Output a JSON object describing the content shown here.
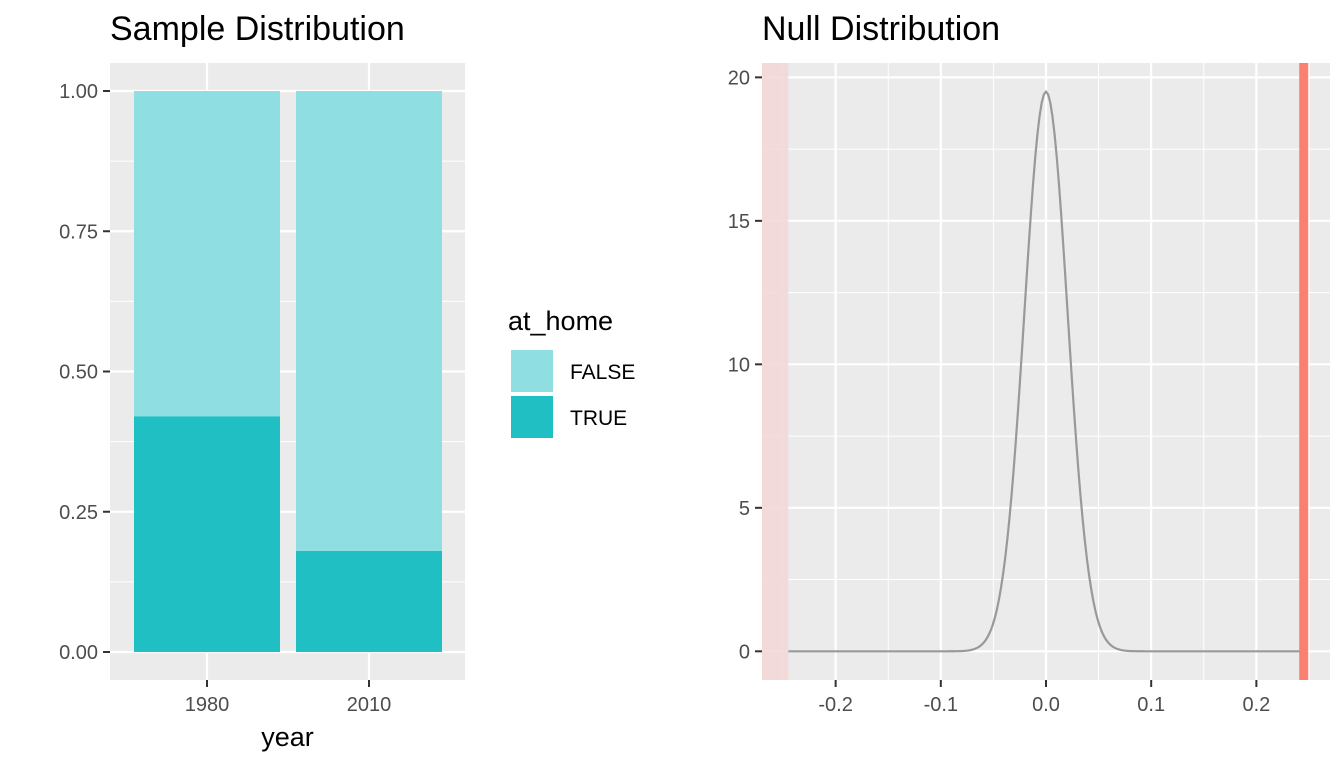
{
  "charts": {
    "sample": {
      "type": "bar",
      "title": "Sample Distribution",
      "xlabel": "year",
      "ylabel": "",
      "categories": [
        "1980",
        "2010"
      ],
      "series": [
        {
          "name": "FALSE",
          "values": [
            0.58,
            0.82
          ]
        },
        {
          "name": "TRUE",
          "values": [
            0.42,
            0.18
          ]
        }
      ],
      "stacked": true,
      "ylim": [
        0,
        1.05
      ],
      "yticks": [
        "0.00",
        "0.25",
        "0.50",
        "0.75",
        "1.00"
      ],
      "legend": {
        "title": "at_home",
        "position": "right",
        "entries": [
          "FALSE",
          "TRUE"
        ]
      }
    },
    "null": {
      "type": "line",
      "title": "Null Distribution",
      "xlabel": "",
      "ylabel": "",
      "xlim": [
        -0.27,
        0.27
      ],
      "ylim": [
        -1,
        20.5
      ],
      "xticks": [
        "-0.2",
        "-0.1",
        "0.0",
        "0.1",
        "0.2"
      ],
      "yticks": [
        "0",
        "5",
        "10",
        "15",
        "20"
      ],
      "density_peak": 19.5,
      "density_sd": 0.0205,
      "x_range": [
        -0.245,
        0.245
      ],
      "observed_stat": 0.245,
      "shaded_region_lower": [
        -0.27,
        -0.245
      ]
    }
  },
  "colors": {
    "panel_bg": "#ebebeb",
    "grid": "#ffffff",
    "false_fill": "#8fdee1",
    "true_fill": "#1fbfc3",
    "density_line": "#999999",
    "observed_line": "#fa8072",
    "shade": "#f4d8d8"
  }
}
